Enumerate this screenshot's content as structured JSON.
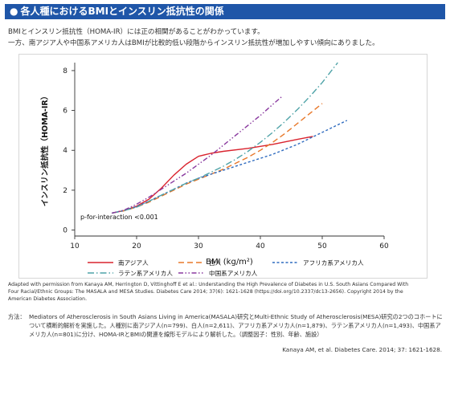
{
  "header": {
    "bullet": "●",
    "title": "各人種におけるBMIとインスリン抵抗性の関係"
  },
  "intro": {
    "line1": "BMIとインスリン抵抗性（HOMA-IR）には正の相関があることがわかっています。",
    "line2": "一方、南アジア人や中国系アメリカ人はBMIが比較的低い段階からインスリン抵抗性が増加しやすい傾向にありました。"
  },
  "chart_data": {
    "type": "line",
    "xlabel": "BMI (kg/m²)",
    "ylabel": "インスリン抵抗性（HOMA-IR）",
    "xlim": [
      10,
      60
    ],
    "ylim": [
      -0.3,
      8.4
    ],
    "xticks": [
      10,
      20,
      30,
      40,
      50,
      60
    ],
    "yticks": [
      0,
      2,
      4,
      6,
      8
    ],
    "grid": false,
    "legend_position": "bottom",
    "annotation": "p-for-interaction <0.001",
    "series": [
      {
        "name": "南アジア人",
        "color": "#d9232e",
        "dash": "solid",
        "x": [
          16,
          18,
          20,
          22,
          24,
          26,
          28,
          30,
          32,
          34,
          38,
          42,
          46,
          48.5
        ],
        "y": [
          0.85,
          0.98,
          1.2,
          1.55,
          2.1,
          2.75,
          3.3,
          3.7,
          3.85,
          3.95,
          4.1,
          4.3,
          4.55,
          4.7
        ]
      },
      {
        "name": "白人",
        "color": "#e8782a",
        "dash": "longdash",
        "x": [
          16,
          18,
          20,
          22,
          24,
          26,
          28,
          30,
          32,
          34,
          36,
          38,
          40,
          42,
          44,
          46,
          48,
          50
        ],
        "y": [
          0.85,
          0.97,
          1.15,
          1.4,
          1.7,
          2.0,
          2.3,
          2.55,
          2.8,
          3.05,
          3.35,
          3.65,
          4.0,
          4.4,
          4.85,
          5.35,
          5.85,
          6.35
        ]
      },
      {
        "name": "アフリカ系アメリカ人",
        "color": "#2f6bbf",
        "dash": "shortdash",
        "x": [
          16,
          18,
          20,
          22,
          24,
          26,
          28,
          30,
          32,
          34,
          36,
          38,
          40,
          42,
          44,
          46,
          48,
          50,
          52,
          54
        ],
        "y": [
          0.85,
          0.98,
          1.18,
          1.45,
          1.75,
          2.05,
          2.35,
          2.6,
          2.8,
          3.0,
          3.2,
          3.4,
          3.6,
          3.8,
          4.05,
          4.3,
          4.6,
          4.9,
          5.2,
          5.5
        ]
      },
      {
        "name": "ラテン系アメリカ人",
        "color": "#4fa3a8",
        "dash": "dashdot",
        "x": [
          16,
          18,
          20,
          22,
          24,
          26,
          28,
          30,
          32,
          34,
          36,
          38,
          40,
          42,
          44,
          46,
          48,
          50,
          52.5
        ],
        "y": [
          0.85,
          0.98,
          1.15,
          1.45,
          1.75,
          2.05,
          2.35,
          2.6,
          2.9,
          3.2,
          3.55,
          3.95,
          4.4,
          4.9,
          5.45,
          6.05,
          6.7,
          7.4,
          8.4
        ]
      },
      {
        "name": "中国系アメリカ人",
        "color": "#8a3a9f",
        "dash": "dashdotdot",
        "x": [
          16,
          18,
          20,
          22,
          24,
          26,
          28,
          30,
          32,
          34,
          36,
          38,
          40,
          42,
          43.5
        ],
        "y": [
          0.85,
          1.0,
          1.3,
          1.65,
          2.05,
          2.45,
          2.85,
          3.3,
          3.75,
          4.25,
          4.75,
          5.25,
          5.75,
          6.3,
          6.7
        ]
      }
    ]
  },
  "legend": {
    "row1": [
      "南アジア人",
      "白人",
      "アフリカ系アメリカ人"
    ],
    "row2": [
      "ラテン系アメリカ人",
      "中国系アメリカ人"
    ]
  },
  "adapted": {
    "line1": "Adapted with permission from Kanaya AM, Herrington D, Vittinghoff E et al.: Understanding the High Prevalence of Diabetes in U.S. South Asians Compared With",
    "line2": "Four Racial/Ethnic Groups: The MASALA and MESA Studies. Diabetes Care 2014; 37(6): 1621-1628 (https://doi.org/10.2337/dc13-2656). Copyright 2014 by the",
    "line3": "American Diabetes Association."
  },
  "method": {
    "label": "方法：",
    "body": "Mediators of Atherosclerosis in South Asians Living in America(MASALA)研究とMulti-Ethnic Study of Atherosclerosis(MESA)研究の2つのコホートについて横断的解析を実施した。人種別に南アジア人(n=799)、白人(n=2,611)、アフリカ系アメリカ人(n=1,879)、ラテン系アメリカ人(n=1,493)、中国系アメリカ人(n=801)に分け、HOMA-IRとBMIの関連を線形モデルにより解析した。（調整因子：性別、年齢、施設）"
  },
  "citation": "Kanaya AM, et al. Diabetes Care. 2014; 37: 1621-1628."
}
